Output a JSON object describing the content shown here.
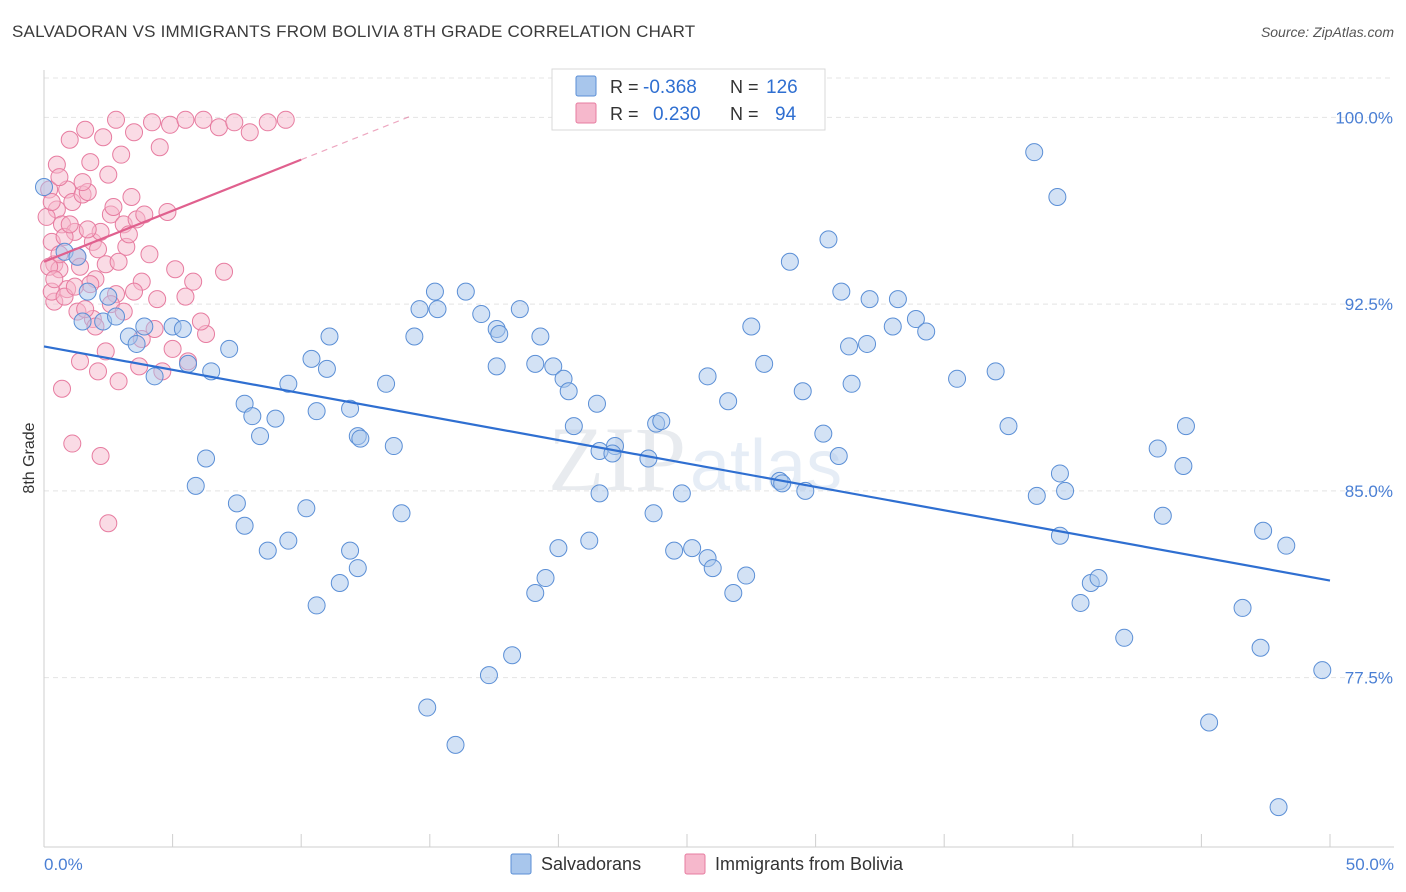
{
  "title": "SALVADORAN VS IMMIGRANTS FROM BOLIVIA 8TH GRADE CORRELATION CHART",
  "source": "Source: ZipAtlas.com",
  "watermark": "ZIPatlas",
  "colors": {
    "blue_fill": "#a8c6ec",
    "blue_stroke": "#5b8fd6",
    "blue_line": "#2f6fd1",
    "pink_fill": "#f6b8cc",
    "pink_stroke": "#e77ca0",
    "pink_line": "#e0608e"
  },
  "legend": {
    "rows": [
      {
        "r_label": "R =",
        "r_value": "-0.368",
        "n_label": "N =",
        "n_value": "126"
      },
      {
        "r_label": "R =",
        "r_value": "0.230",
        "n_label": "N =",
        "n_value": "94"
      }
    ]
  },
  "bottom_legend": [
    "Salvadorans",
    "Immigrants from Bolivia"
  ],
  "chart_data": {
    "type": "scatter",
    "xlabel": "",
    "ylabel": "8th Grade",
    "xlim": [
      0,
      50
    ],
    "ylim": [
      70.7,
      101.9
    ],
    "x_tick_labels": [
      "0.0%",
      "50.0%"
    ],
    "y_ticks": [
      77.5,
      85.0,
      92.5,
      100.0
    ],
    "y_tick_labels": [
      "77.5%",
      "85.0%",
      "92.5%",
      "100.0%"
    ],
    "series": [
      {
        "name": "Salvadorans",
        "R": -0.368,
        "N": 126,
        "trend": {
          "x0": 0,
          "y0": 90.8,
          "x1": 50,
          "y1": 81.4
        },
        "points": [
          [
            0.0,
            97.2
          ],
          [
            0.8,
            94.6
          ],
          [
            1.3,
            94.4
          ],
          [
            1.7,
            93.0
          ],
          [
            1.5,
            91.8
          ],
          [
            2.5,
            92.8
          ],
          [
            2.3,
            91.8
          ],
          [
            2.8,
            92.0
          ],
          [
            3.3,
            91.2
          ],
          [
            3.6,
            90.9
          ],
          [
            4.3,
            89.6
          ],
          [
            3.9,
            91.6
          ],
          [
            5.0,
            91.6
          ],
          [
            5.6,
            90.1
          ],
          [
            5.4,
            91.5
          ],
          [
            6.5,
            89.8
          ],
          [
            7.2,
            90.7
          ],
          [
            7.8,
            88.5
          ],
          [
            8.1,
            88.0
          ],
          [
            8.4,
            87.2
          ],
          [
            9.0,
            87.9
          ],
          [
            9.5,
            89.3
          ],
          [
            10.6,
            88.2
          ],
          [
            10.4,
            90.3
          ],
          [
            11.0,
            89.9
          ],
          [
            11.1,
            91.2
          ],
          [
            11.9,
            88.3
          ],
          [
            12.2,
            87.2
          ],
          [
            12.3,
            87.1
          ],
          [
            13.3,
            89.3
          ],
          [
            13.6,
            86.8
          ],
          [
            14.4,
            91.2
          ],
          [
            15.2,
            93.0
          ],
          [
            15.3,
            92.3
          ],
          [
            14.6,
            92.3
          ],
          [
            16.4,
            93.0
          ],
          [
            17.0,
            92.1
          ],
          [
            17.6,
            91.5
          ],
          [
            17.7,
            91.3
          ],
          [
            17.6,
            90.0
          ],
          [
            18.5,
            92.3
          ],
          [
            19.1,
            90.1
          ],
          [
            19.8,
            90.0
          ],
          [
            20.2,
            89.5
          ],
          [
            19.3,
            91.2
          ],
          [
            20.4,
            89.0
          ],
          [
            20.6,
            87.6
          ],
          [
            21.5,
            88.5
          ],
          [
            21.6,
            86.6
          ],
          [
            22.2,
            86.8
          ],
          [
            23.5,
            86.3
          ],
          [
            23.7,
            84.1
          ],
          [
            24.8,
            84.9
          ],
          [
            25.2,
            82.7
          ],
          [
            24.5,
            82.6
          ],
          [
            25.8,
            82.3
          ],
          [
            26.0,
            81.9
          ],
          [
            27.3,
            81.6
          ],
          [
            26.8,
            80.9
          ],
          [
            28.6,
            85.4
          ],
          [
            28.7,
            85.3
          ],
          [
            29.6,
            85.0
          ],
          [
            30.3,
            87.3
          ],
          [
            30.9,
            86.4
          ],
          [
            29.5,
            89.0
          ],
          [
            31.4,
            89.3
          ],
          [
            31.3,
            90.8
          ],
          [
            32.0,
            90.9
          ],
          [
            32.1,
            92.7
          ],
          [
            31.0,
            93.0
          ],
          [
            33.2,
            92.7
          ],
          [
            33.0,
            91.6
          ],
          [
            33.9,
            91.9
          ],
          [
            34.3,
            91.4
          ],
          [
            35.5,
            89.5
          ],
          [
            37.0,
            89.8
          ],
          [
            37.5,
            87.6
          ],
          [
            38.6,
            84.8
          ],
          [
            39.5,
            85.7
          ],
          [
            39.5,
            83.2
          ],
          [
            39.7,
            85.0
          ],
          [
            40.7,
            81.3
          ],
          [
            40.3,
            80.5
          ],
          [
            41.0,
            81.5
          ],
          [
            42.0,
            79.1
          ],
          [
            43.5,
            84.0
          ],
          [
            43.3,
            86.7
          ],
          [
            44.4,
            87.6
          ],
          [
            44.3,
            86.0
          ],
          [
            47.4,
            83.4
          ],
          [
            46.6,
            80.3
          ],
          [
            47.3,
            78.7
          ],
          [
            48.3,
            82.8
          ],
          [
            49.7,
            77.8
          ],
          [
            45.3,
            75.7
          ],
          [
            48.0,
            72.3
          ],
          [
            38.5,
            98.6
          ],
          [
            39.4,
            96.8
          ],
          [
            29.0,
            94.2
          ],
          [
            30.5,
            95.1
          ],
          [
            27.5,
            91.6
          ],
          [
            28.0,
            90.1
          ],
          [
            25.8,
            89.6
          ],
          [
            26.6,
            88.6
          ],
          [
            23.8,
            87.7
          ],
          [
            24.0,
            87.8
          ],
          [
            22.1,
            86.5
          ],
          [
            21.6,
            84.9
          ],
          [
            21.2,
            83.0
          ],
          [
            20.0,
            82.7
          ],
          [
            19.5,
            81.5
          ],
          [
            19.1,
            80.9
          ],
          [
            18.2,
            78.4
          ],
          [
            17.3,
            77.6
          ],
          [
            16.0,
            74.8
          ],
          [
            14.9,
            76.3
          ],
          [
            12.2,
            81.9
          ],
          [
            11.9,
            82.6
          ],
          [
            10.6,
            80.4
          ],
          [
            10.2,
            84.3
          ],
          [
            9.5,
            83.0
          ],
          [
            8.7,
            82.6
          ],
          [
            7.8,
            83.6
          ],
          [
            7.5,
            84.5
          ],
          [
            6.3,
            86.3
          ],
          [
            5.9,
            85.2
          ],
          [
            11.5,
            81.3
          ],
          [
            13.9,
            84.1
          ]
        ]
      },
      {
        "name": "Immigrants from Bolivia",
        "R": 0.23,
        "N": 94,
        "trend": {
          "x0": 0,
          "y0": 94.2,
          "x1": 10,
          "y1": 98.3
        },
        "points": [
          [
            0.3,
            95.0
          ],
          [
            0.5,
            96.3
          ],
          [
            0.4,
            94.1
          ],
          [
            0.7,
            95.7
          ],
          [
            0.9,
            97.1
          ],
          [
            0.6,
            93.9
          ],
          [
            1.1,
            96.6
          ],
          [
            1.2,
            95.4
          ],
          [
            0.8,
            95.2
          ],
          [
            1.5,
            96.9
          ],
          [
            1.3,
            94.4
          ],
          [
            1.9,
            95.0
          ],
          [
            1.7,
            97.0
          ],
          [
            2.0,
            93.5
          ],
          [
            2.2,
            95.4
          ],
          [
            2.4,
            94.1
          ],
          [
            2.6,
            96.1
          ],
          [
            2.8,
            92.9
          ],
          [
            3.1,
            95.7
          ],
          [
            3.4,
            96.8
          ],
          [
            3.2,
            94.8
          ],
          [
            3.6,
            95.9
          ],
          [
            3.8,
            93.4
          ],
          [
            4.1,
            94.5
          ],
          [
            4.4,
            92.7
          ],
          [
            4.8,
            96.2
          ],
          [
            5.1,
            93.9
          ],
          [
            5.5,
            92.8
          ],
          [
            5.8,
            93.4
          ],
          [
            0.2,
            97.1
          ],
          [
            0.5,
            98.1
          ],
          [
            1.0,
            99.1
          ],
          [
            1.6,
            99.5
          ],
          [
            2.3,
            99.2
          ],
          [
            2.8,
            99.9
          ],
          [
            3.5,
            99.4
          ],
          [
            4.2,
            99.8
          ],
          [
            4.9,
            99.7
          ],
          [
            5.5,
            99.9
          ],
          [
            6.2,
            99.9
          ],
          [
            6.8,
            99.6
          ],
          [
            7.4,
            99.8
          ],
          [
            8.0,
            99.4
          ],
          [
            8.7,
            99.8
          ],
          [
            9.4,
            99.9
          ],
          [
            1.8,
            98.2
          ],
          [
            3.0,
            98.5
          ],
          [
            4.5,
            98.8
          ],
          [
            0.4,
            92.6
          ],
          [
            0.9,
            93.1
          ],
          [
            1.3,
            92.2
          ],
          [
            1.9,
            91.9
          ],
          [
            2.6,
            92.5
          ],
          [
            3.1,
            92.2
          ],
          [
            3.8,
            91.1
          ],
          [
            4.3,
            91.5
          ],
          [
            5.0,
            90.7
          ],
          [
            5.6,
            90.2
          ],
          [
            6.3,
            91.3
          ],
          [
            7.0,
            93.8
          ],
          [
            1.4,
            90.2
          ],
          [
            2.1,
            89.8
          ],
          [
            2.9,
            89.4
          ],
          [
            0.7,
            89.1
          ],
          [
            2.2,
            86.4
          ],
          [
            2.5,
            83.7
          ],
          [
            1.1,
            86.9
          ],
          [
            0.3,
            93.0
          ],
          [
            0.6,
            94.5
          ],
          [
            1.0,
            95.7
          ],
          [
            1.4,
            94.0
          ],
          [
            1.8,
            93.3
          ],
          [
            2.1,
            94.7
          ],
          [
            2.7,
            96.4
          ],
          [
            3.3,
            95.3
          ],
          [
            3.9,
            96.1
          ],
          [
            0.2,
            94.0
          ],
          [
            0.4,
            93.5
          ],
          [
            0.8,
            92.8
          ],
          [
            1.2,
            93.2
          ],
          [
            1.6,
            92.3
          ],
          [
            2.0,
            91.6
          ],
          [
            2.4,
            90.6
          ],
          [
            3.7,
            90.0
          ],
          [
            4.6,
            89.8
          ],
          [
            6.1,
            91.8
          ],
          [
            0.1,
            96.0
          ],
          [
            0.3,
            96.6
          ],
          [
            1.7,
            95.5
          ],
          [
            2.9,
            94.2
          ],
          [
            3.5,
            93.0
          ],
          [
            0.6,
            97.6
          ],
          [
            1.5,
            97.4
          ],
          [
            2.5,
            97.7
          ]
        ]
      }
    ]
  }
}
